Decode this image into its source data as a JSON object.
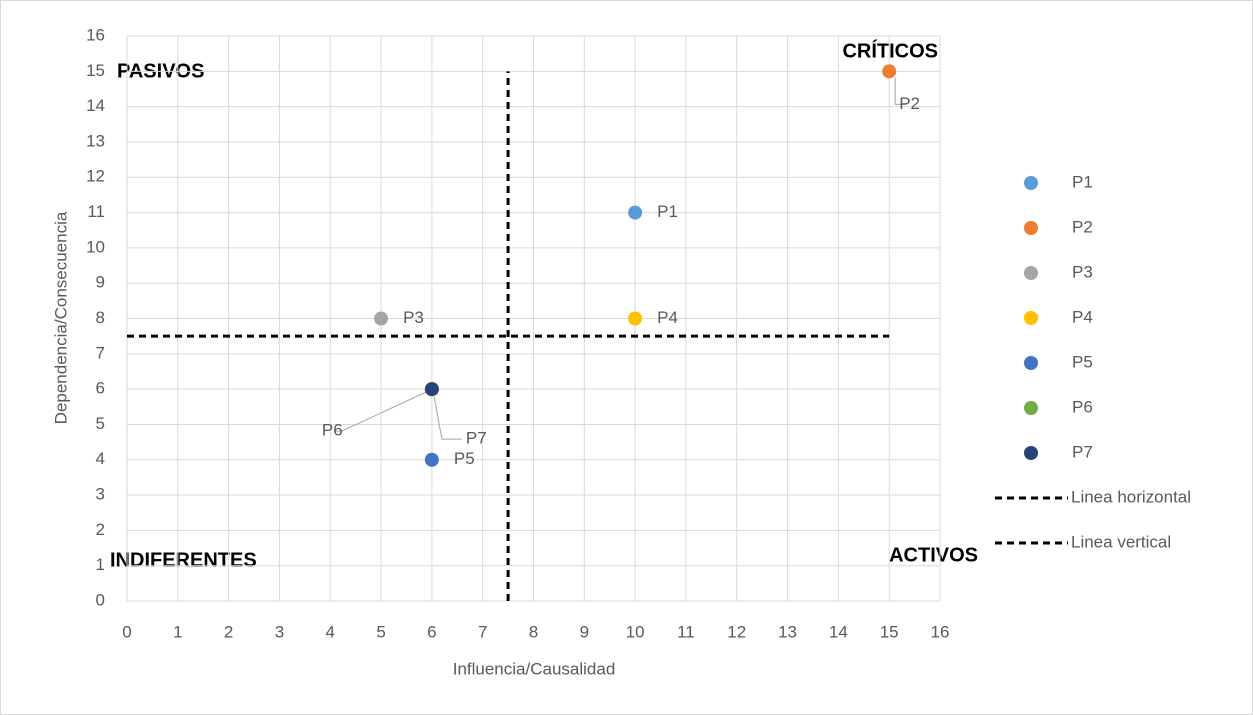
{
  "chart_data": {
    "type": "scatter",
    "xlabel": "Influencia/Causalidad",
    "ylabel": "Dependencia/Consecuencia",
    "xlim": [
      0,
      16
    ],
    "xticks": [
      0,
      1,
      2,
      3,
      4,
      5,
      6,
      7,
      8,
      9,
      10,
      11,
      12,
      13,
      14,
      15,
      16
    ],
    "ylim": [
      0,
      16
    ],
    "yticks": [
      0,
      1,
      2,
      3,
      4,
      5,
      6,
      7,
      8,
      9,
      10,
      11,
      12,
      13,
      14,
      15,
      16
    ],
    "grid": true,
    "legend": "right",
    "annotations": [
      "PASIVOS",
      "CRÍTICOS",
      "INDIFERENTES",
      "ACTIVOS"
    ],
    "series": [
      {
        "name": "P1",
        "color": "#5b9bd5",
        "x": [
          10
        ],
        "values": [
          11
        ]
      },
      {
        "name": "P2",
        "color": "#ed7d31",
        "x": [
          15
        ],
        "values": [
          15
        ]
      },
      {
        "name": "P3",
        "color": "#a5a5a5",
        "x": [
          5
        ],
        "values": [
          8
        ]
      },
      {
        "name": "P4",
        "color": "#ffc000",
        "x": [
          10
        ],
        "values": [
          8
        ]
      },
      {
        "name": "P5",
        "color": "#4472c4",
        "x": [
          6
        ],
        "values": [
          4
        ]
      },
      {
        "name": "P6",
        "color": "#70ad47",
        "x": [
          6
        ],
        "values": [
          6
        ]
      },
      {
        "name": "P7",
        "color": "#264478",
        "x": [
          6
        ],
        "values": [
          6
        ]
      },
      {
        "name": "Linea horizontal",
        "color": "#000000",
        "line": "dashed",
        "x": [
          0,
          15
        ],
        "values": [
          7.5,
          7.5
        ]
      },
      {
        "name": "Linea vertical",
        "color": "#000000",
        "line": "dashed",
        "x": [
          7.5,
          7.5
        ],
        "values": [
          0,
          15
        ]
      }
    ]
  }
}
